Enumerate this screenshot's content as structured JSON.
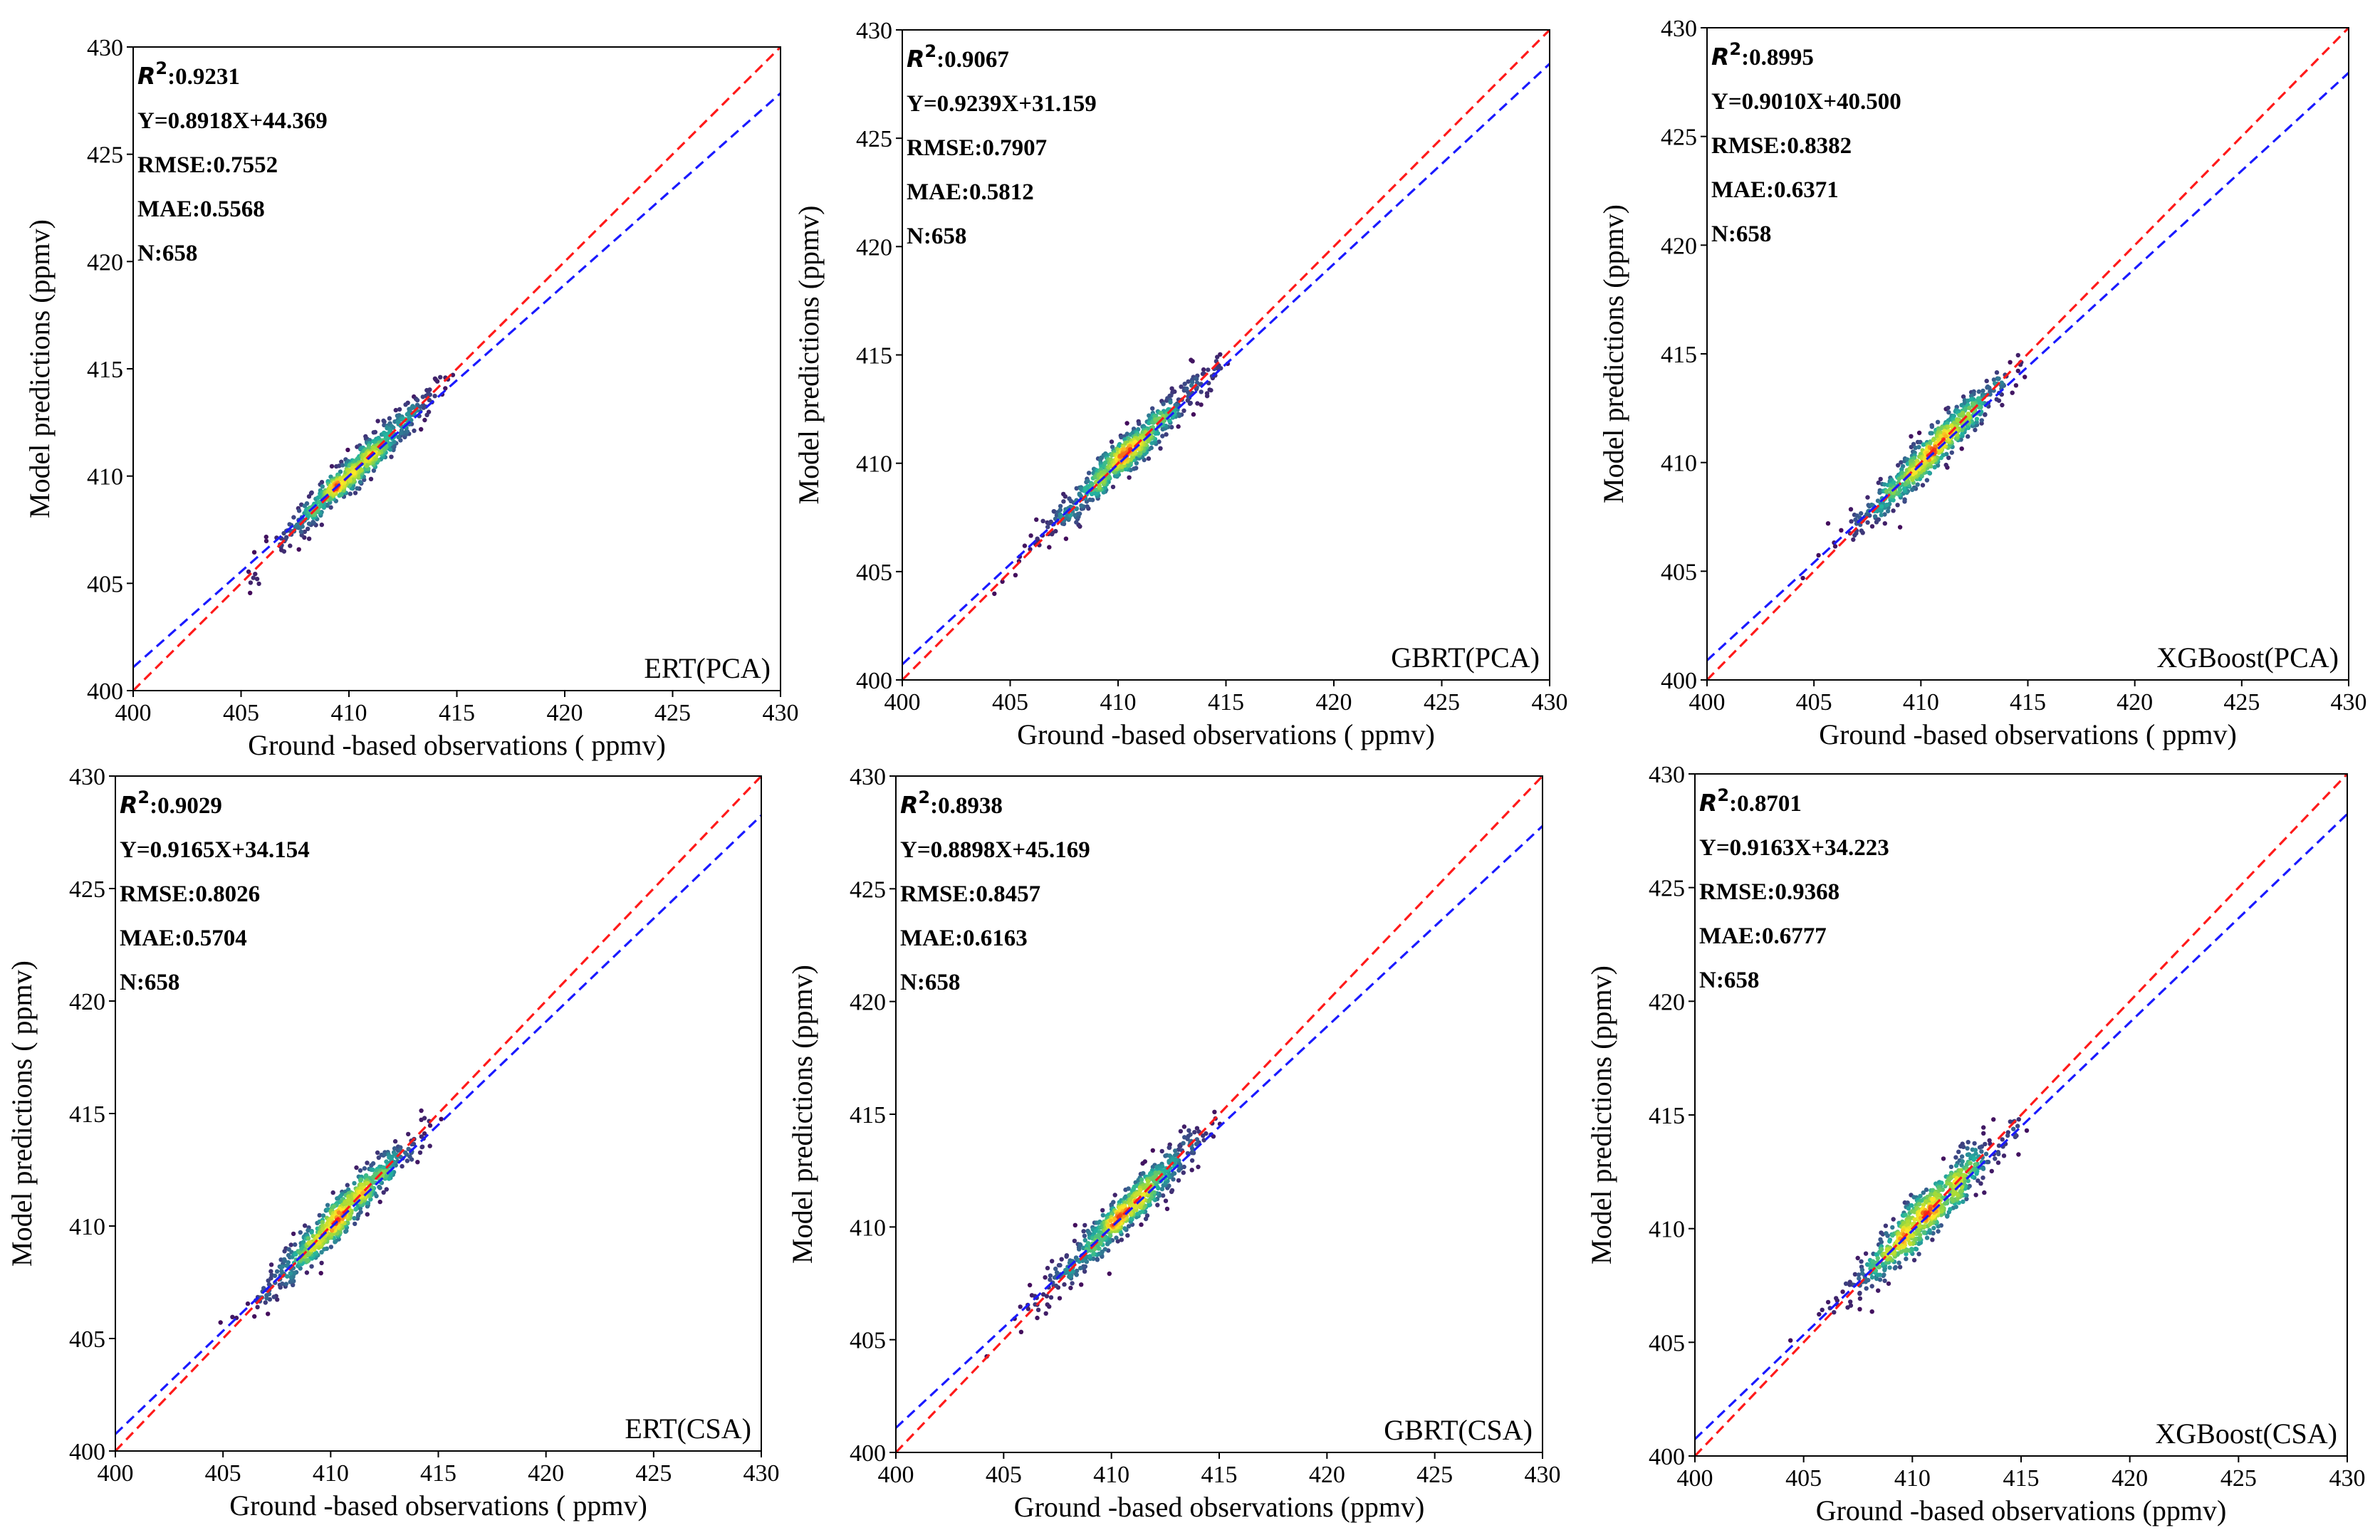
{
  "figure": {
    "x_label": "Ground -based observations ( ppmv)",
    "y_label": "Model predictions (ppmv)",
    "ticks": [
      "400",
      "405",
      "410",
      "415",
      "420",
      "425",
      "430"
    ],
    "line_colors": {
      "fit": "#1a1aff",
      "identity": "#ff1a1a"
    }
  },
  "chart_data": [
    {
      "type": "scatter",
      "name": "ERT(PCA)",
      "model": "ERT",
      "feature": "PCA",
      "label": "ERT(PCA)",
      "r2": "0.9231",
      "equation": "Y=0.8918X+44.369",
      "rmse": "0.7552",
      "mae": "0.5568",
      "n": "658",
      "slope": 0.8918,
      "intercept": 44.369,
      "spread": 0.55,
      "point_center": 410.5,
      "xlim": [
        400,
        430
      ],
      "ylim": [
        400,
        430
      ],
      "xlabel": "Ground -based observations ( ppmv)",
      "ylabel": "Model predictions (ppmv)"
    },
    {
      "type": "scatter",
      "name": "GBRT(PCA)",
      "model": "GBRT",
      "feature": "PCA",
      "label": "GBRT(PCA)",
      "r2": "0.9067",
      "equation": "Y=0.9239X+31.159",
      "rmse": "0.7907",
      "mae": "0.5812",
      "n": "658",
      "slope": 0.9239,
      "intercept": 31.159,
      "spread": 0.6,
      "point_center": 410.5,
      "xlim": [
        400,
        430
      ],
      "ylim": [
        400,
        430
      ],
      "xlabel": "Ground -based observations ( ppmv)",
      "ylabel": "Model predictions (ppmv)"
    },
    {
      "type": "scatter",
      "name": "XGBoost(PCA)",
      "model": "XGBoost",
      "feature": "PCA",
      "label": "XGBoost(PCA)",
      "r2": "0.8995",
      "equation": "Y=0.9010X+40.500",
      "rmse": "0.8382",
      "mae": "0.6371",
      "n": "658",
      "slope": 0.901,
      "intercept": 40.5,
      "spread": 0.65,
      "point_center": 410.5,
      "xlim": [
        400,
        430
      ],
      "ylim": [
        400,
        430
      ],
      "xlabel": "Ground -based observations ( ppmv)",
      "ylabel": "Model predictions (ppmv)"
    },
    {
      "type": "scatter",
      "name": "ERT(CSA)",
      "model": "ERT",
      "feature": "CSA",
      "label": "ERT(CSA)",
      "r2": "0.9029",
      "equation": "Y=0.9165X+34.154",
      "rmse": "0.8026",
      "mae": "0.5704",
      "n": "658",
      "slope": 0.9165,
      "intercept": 34.154,
      "spread": 0.62,
      "point_center": 410.5,
      "xlim": [
        400,
        430
      ],
      "ylim": [
        400,
        430
      ],
      "xlabel": "Ground -based observations ( ppmv)",
      "ylabel": "Model predictions ( ppmv)"
    },
    {
      "type": "scatter",
      "name": "GBRT(CSA)",
      "model": "GBRT",
      "feature": "CSA",
      "label": "GBRT(CSA)",
      "r2": "0.8938",
      "equation": "Y=0.8898X+45.169",
      "rmse": "0.8457",
      "mae": "0.6163",
      "n": "658",
      "slope": 0.8898,
      "intercept": 45.169,
      "spread": 0.66,
      "point_center": 410.5,
      "xlim": [
        400,
        430
      ],
      "ylim": [
        400,
        430
      ],
      "xlabel": "Ground -based observations (ppmv)",
      "ylabel": "Model predictions (ppmv)"
    },
    {
      "type": "scatter",
      "name": "XGBoost(CSA)",
      "model": "XGBoost",
      "feature": "CSA",
      "label": "XGBoost(CSA)",
      "r2": "0.8701",
      "equation": "Y=0.9163X+34.223",
      "rmse": "0.9368",
      "mae": "0.6777",
      "n": "658",
      "slope": 0.9163,
      "intercept": 34.223,
      "spread": 0.75,
      "point_center": 410.5,
      "xlim": [
        400,
        430
      ],
      "ylim": [
        400,
        430
      ],
      "xlabel": "Ground -based observations (ppmv)",
      "ylabel": "Model predictions (ppmv)"
    }
  ]
}
